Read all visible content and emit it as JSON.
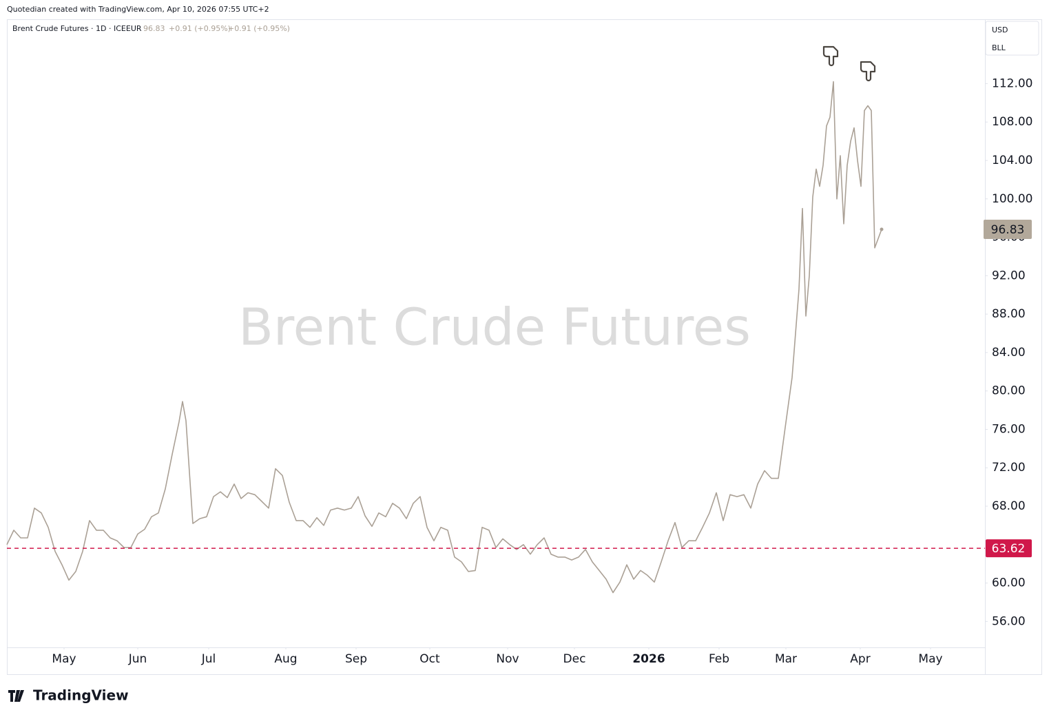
{
  "attribution": "Quotedian created with TradingView.com, Apr 10, 2026 07:55 UTC+2",
  "logo": "TradingView",
  "chart_data": {
    "type": "line",
    "title": "Brent Crude Futures",
    "header": {
      "symbol": "Brent Crude Futures · 1D · ICEEUR",
      "price": "96.83",
      "change": "+0.91 (+0.95%)",
      "change_2": "+0.91 (+0.95%)"
    },
    "currency": "USD",
    "unit": "BLL",
    "x": [
      0,
      2,
      4,
      6,
      8,
      10,
      12,
      14,
      16,
      18,
      20,
      22,
      24,
      26,
      28,
      30,
      32,
      34,
      36,
      38,
      40,
      42,
      44,
      46,
      48,
      50,
      51,
      52,
      54,
      56,
      58,
      60,
      62,
      64,
      66,
      68,
      70,
      72,
      74,
      76,
      78,
      80,
      82,
      84,
      86,
      88,
      90,
      92,
      94,
      96,
      98,
      100,
      102,
      104,
      106,
      108,
      110,
      112,
      114,
      116,
      118,
      120,
      122,
      124,
      126,
      128,
      130,
      132,
      134,
      136,
      138,
      140,
      142,
      144,
      146,
      148,
      150,
      152,
      154,
      156,
      158,
      160,
      162,
      164,
      166,
      168,
      170,
      172,
      174,
      176,
      178,
      180,
      182,
      184,
      186,
      188,
      190,
      192,
      194,
      196,
      198,
      200,
      202,
      204,
      206,
      208,
      210,
      212,
      214,
      216,
      218,
      220,
      222,
      224,
      226,
      228,
      230,
      231,
      232,
      233,
      234,
      235,
      236,
      237,
      238,
      239,
      240,
      241,
      242,
      243,
      244,
      245,
      246,
      247,
      248,
      249,
      250,
      251,
      252,
      254
    ],
    "series": [
      {
        "color": "#aaa095",
        "values": [
          64.0,
          65.5,
          64.7,
          64.7,
          67.8,
          67.3,
          65.8,
          63.3,
          61.9,
          60.3,
          61.2,
          63.3,
          66.5,
          65.5,
          65.5,
          64.7,
          64.4,
          63.7,
          63.7,
          65.1,
          65.6,
          66.9,
          67.3,
          69.8,
          73.4,
          76.8,
          78.9,
          76.9,
          66.2,
          66.7,
          66.9,
          69.0,
          69.5,
          68.9,
          70.3,
          68.8,
          69.4,
          69.2,
          68.5,
          67.8,
          71.9,
          71.2,
          68.4,
          66.5,
          66.5,
          65.8,
          66.8,
          66.0,
          67.6,
          67.8,
          67.6,
          67.8,
          69.0,
          67.0,
          65.9,
          67.3,
          66.9,
          68.3,
          67.8,
          66.7,
          68.3,
          69.0,
          65.8,
          64.4,
          65.8,
          65.5,
          62.7,
          62.2,
          61.2,
          61.3,
          65.8,
          65.5,
          63.7,
          64.6,
          64.0,
          63.5,
          64.0,
          63.0,
          64.0,
          64.7,
          63.0,
          62.7,
          62.7,
          62.4,
          62.7,
          63.5,
          62.2,
          61.3,
          60.4,
          59.0,
          60.1,
          61.9,
          60.4,
          61.3,
          60.8,
          60.1,
          62.2,
          64.4,
          66.3,
          63.7,
          64.4,
          64.4,
          65.8,
          67.3,
          69.4,
          66.5,
          69.2,
          69.0,
          69.2,
          67.8,
          70.3,
          71.7,
          70.9,
          70.9,
          76.2,
          81.4,
          90.6,
          99.0,
          87.8,
          92.0,
          100.2,
          103.1,
          101.3,
          103.5,
          107.6,
          108.5,
          112.2,
          100.0,
          104.5,
          97.4,
          103.5,
          106.0,
          107.4,
          104.0,
          101.3,
          109.2,
          109.7,
          109.2,
          94.9,
          96.83
        ]
      }
    ],
    "xlim": [
      0,
      284
    ],
    "xticks": [
      {
        "value": 16.6,
        "label": "May"
      },
      {
        "value": 38,
        "label": "Jun"
      },
      {
        "value": 58.6,
        "label": "Jul"
      },
      {
        "value": 81,
        "label": "Aug"
      },
      {
        "value": 101.4,
        "label": "Sep"
      },
      {
        "value": 122.8,
        "label": "Oct"
      },
      {
        "value": 145.4,
        "label": "Nov"
      },
      {
        "value": 164.8,
        "label": "Dec"
      },
      {
        "value": 186.4,
        "label": "2026"
      },
      {
        "value": 206.8,
        "label": "Feb"
      },
      {
        "value": 226.2,
        "label": "Mar"
      },
      {
        "value": 247.8,
        "label": "Apr"
      },
      {
        "value": 268.2,
        "label": "May"
      }
    ],
    "ylim": [
      53.3,
      118.7
    ],
    "yticks": [
      {
        "value": 56,
        "label": "56.00"
      },
      {
        "value": 60,
        "label": "60.00"
      },
      {
        "value": 64,
        "label": "64.00"
      },
      {
        "value": 68,
        "label": "68.00"
      },
      {
        "value": 72,
        "label": "72.00"
      },
      {
        "value": 76,
        "label": "76.00"
      },
      {
        "value": 80,
        "label": "80.00"
      },
      {
        "value": 84,
        "label": "84.00"
      },
      {
        "value": 88,
        "label": "88.00"
      },
      {
        "value": 92,
        "label": "92.00"
      },
      {
        "value": 96,
        "label": "96.00"
      },
      {
        "value": 100,
        "label": "100.00"
      },
      {
        "value": 104,
        "label": "104.00"
      },
      {
        "value": 108,
        "label": "108.00"
      },
      {
        "value": 112,
        "label": "112.00"
      }
    ],
    "last_price": {
      "value": 96.83,
      "color": "#b2a89a"
    },
    "hline": {
      "value": 63.62,
      "color": "#d0184a"
    },
    "grid": false
  }
}
